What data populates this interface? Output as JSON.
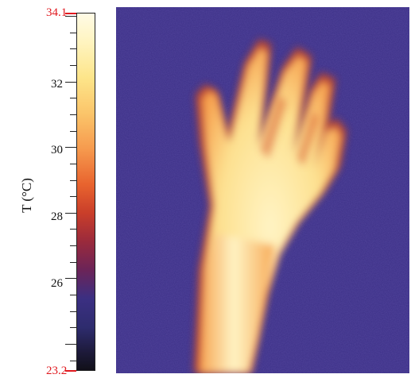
{
  "colorbar": {
    "max_label": "34.1",
    "min_label": "23.2",
    "tick_labels": [
      "32",
      "30",
      "28",
      "26"
    ],
    "axis_label": "T (°C)",
    "range": [
      23.2,
      34.1
    ]
  },
  "colors": {
    "background_cold": "#3c2f86",
    "hand_hot": "#fff0b8",
    "extreme_marker": "#e0191f"
  }
}
